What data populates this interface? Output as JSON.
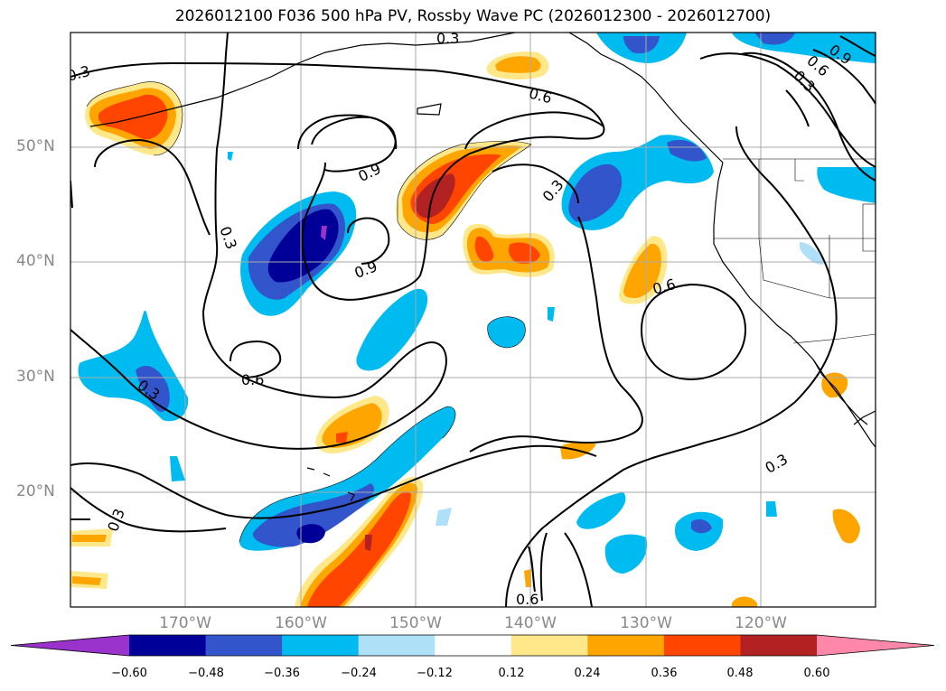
{
  "title": "2026012100 F036 500 hPa PV, Rossby Wave PC (2026012300 - 2026012700)",
  "lat_labels": [
    "50°N",
    "40°N",
    "30°N",
    "20°N"
  ],
  "lon_labels": [
    "170°W",
    "160°W",
    "150°W",
    "140°W",
    "130°W",
    "120°W"
  ],
  "colorbar": {
    "ticks": [
      "−0.60",
      "−0.48",
      "−0.36",
      "−0.24",
      "−0.12",
      "0.12",
      "0.24",
      "0.36",
      "0.48",
      "0.60"
    ],
    "colors": [
      "#9933cc",
      "#000099",
      "#3355cc",
      "#00bbf0",
      "#aee0f8",
      "#ffffff",
      "#ffe88a",
      "#ffa500",
      "#ff4500",
      "#b22222",
      "#ff88aa"
    ]
  },
  "contour_labels": [
    "0.3",
    "0.6",
    "0.9"
  ]
}
